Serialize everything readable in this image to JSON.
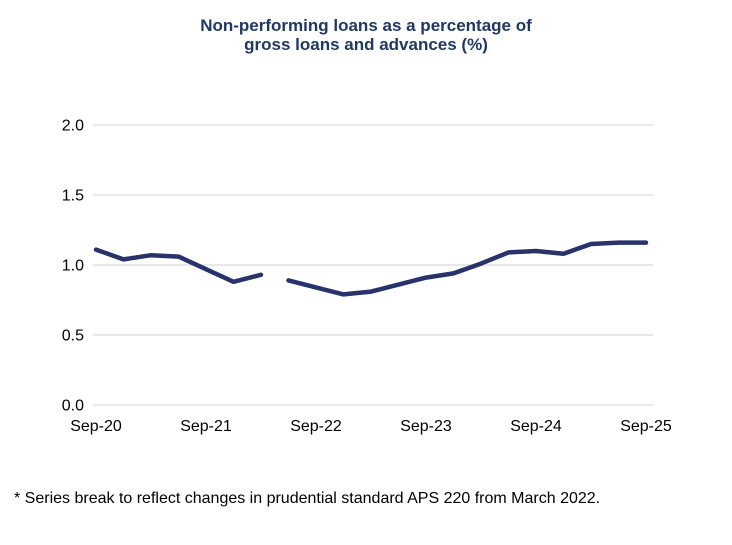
{
  "title": {
    "line1": "Non-performing loans as a percentage of",
    "line2": "gross loans and advances (%)"
  },
  "footnote": "* Series break to reflect changes in prudential standard APS 220 from March 2022.",
  "colors": {
    "line": "#28336B",
    "title": "#1F3864",
    "gridline": "#D9D9D9",
    "axis_text": "#000000",
    "background": "#FFFFFF"
  },
  "chart_data": {
    "type": "line",
    "title": "Non-performing loans as a percentage of gross loans and advances (%)",
    "xlabel": "",
    "ylabel": "",
    "ylim": [
      0.0,
      2.0
    ],
    "y_tick_step": 0.5,
    "y_tick_labels": [
      "2.0",
      "1.5",
      "1.0",
      "0.5",
      "0.0"
    ],
    "y_tick_values": [
      2.0,
      1.5,
      1.0,
      0.5,
      0.0
    ],
    "x_tick_labels": [
      "Sep-20",
      "Sep-21",
      "Sep-22",
      "Sep-23",
      "Sep-24",
      "Sep-25"
    ],
    "quarters_per_x_tick": 4,
    "grid": "horizontal",
    "legend": "none",
    "series_break_note": "Series break at March 2022 (line drawn with a gap between Mar-22 and Jun-22)",
    "series": [
      {
        "name": "pre-break",
        "start_quarter_index": 0,
        "x": [
          "Sep-20",
          "Dec-20",
          "Mar-21",
          "Jun-21",
          "Sep-21",
          "Dec-21",
          "Mar-22"
        ],
        "values": [
          1.11,
          1.04,
          1.07,
          1.06,
          0.97,
          0.88,
          0.93
        ]
      },
      {
        "name": "post-break",
        "start_quarter_index": 7,
        "x": [
          "Jun-22",
          "Sep-22",
          "Dec-22",
          "Mar-23",
          "Jun-23",
          "Sep-23",
          "Dec-23",
          "Mar-24",
          "Jun-24",
          "Sep-24",
          "Dec-24",
          "Mar-25",
          "Jun-25",
          "Sep-25"
        ],
        "values": [
          0.89,
          0.84,
          0.79,
          0.81,
          0.86,
          0.91,
          0.94,
          1.01,
          1.09,
          1.1,
          1.08,
          1.15,
          1.16,
          1.16
        ]
      }
    ]
  }
}
